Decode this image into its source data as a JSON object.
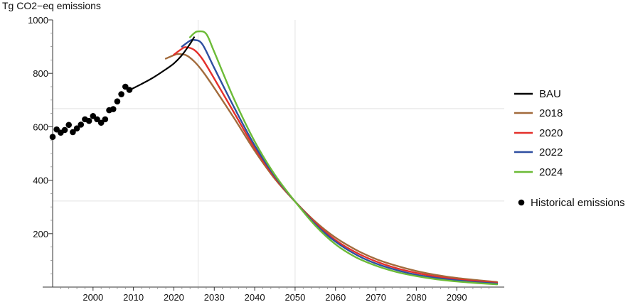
{
  "chart_data": {
    "type": "line",
    "title": "",
    "xlabel": "",
    "ylabel": "Tg CO2−eq emissions",
    "xlim": [
      1990,
      2100
    ],
    "ylim": [
      0,
      1000
    ],
    "x_ticks": [
      "2000",
      "2010",
      "2020",
      "2030",
      "2040",
      "2050",
      "2060",
      "2070",
      "2080",
      "2090"
    ],
    "y_ticks": [
      "200",
      "400",
      "600",
      "800",
      "1000"
    ],
    "reference_lines": {
      "vertical_x": [
        2026,
        2050
      ],
      "horizontal_y": [
        668,
        322
      ]
    },
    "legend_position": "right",
    "series": [
      {
        "name": "BAU",
        "color": "#000000",
        "x": [
          2009,
          2012,
          2015,
          2018,
          2020,
          2022,
          2024,
          2025
        ],
        "y": [
          737,
          760,
          785,
          815,
          837,
          868,
          910,
          935
        ]
      },
      {
        "name": "2018",
        "color": "#a26b3c",
        "x": [
          2018,
          2020,
          2021,
          2023,
          2025,
          2027,
          2030,
          2035,
          2040,
          2045,
          2050,
          2055,
          2060,
          2065,
          2070,
          2075,
          2080,
          2085,
          2090,
          2095,
          2100
        ],
        "y": [
          855,
          868,
          872,
          868,
          845,
          810,
          745,
          630,
          510,
          405,
          320,
          245,
          185,
          140,
          105,
          80,
          60,
          45,
          34,
          26,
          19
        ]
      },
      {
        "name": "2020",
        "color": "#e4302b",
        "x": [
          2020,
          2022,
          2023,
          2025,
          2027,
          2030,
          2035,
          2040,
          2045,
          2050,
          2055,
          2060,
          2065,
          2070,
          2075,
          2080,
          2085,
          2090,
          2095,
          2100
        ],
        "y": [
          870,
          892,
          898,
          888,
          855,
          780,
          650,
          520,
          410,
          320,
          240,
          176,
          130,
          96,
          71,
          53,
          39,
          29,
          22,
          16
        ]
      },
      {
        "name": "2022",
        "color": "#2f4fa1",
        "x": [
          2022,
          2024,
          2025,
          2027,
          2030,
          2035,
          2040,
          2045,
          2050,
          2055,
          2060,
          2065,
          2070,
          2075,
          2080,
          2085,
          2090,
          2095,
          2100
        ],
        "y": [
          900,
          922,
          925,
          910,
          820,
          670,
          530,
          415,
          320,
          235,
          170,
          122,
          88,
          64,
          46,
          34,
          25,
          18,
          13
        ]
      },
      {
        "name": "2024",
        "color": "#6cbb37",
        "x": [
          2024,
          2025,
          2026,
          2028,
          2030,
          2035,
          2040,
          2045,
          2050,
          2055,
          2060,
          2065,
          2070,
          2075,
          2080,
          2085,
          2090,
          2095,
          2100
        ],
        "y": [
          935,
          950,
          957,
          948,
          880,
          700,
          545,
          420,
          320,
          230,
          160,
          112,
          80,
          57,
          41,
          29,
          21,
          15,
          10
        ]
      },
      {
        "name": "Historical emissions",
        "color": "#000000",
        "marker": "dot",
        "x": [
          1990,
          1991,
          1992,
          1993,
          1994,
          1995,
          1996,
          1997,
          1998,
          1999,
          2000,
          2001,
          2002,
          2003,
          2004,
          2005,
          2006,
          2007,
          2008,
          2009
        ],
        "y": [
          562,
          590,
          578,
          588,
          607,
          580,
          594,
          608,
          628,
          622,
          640,
          628,
          615,
          628,
          662,
          666,
          695,
          722,
          750,
          738
        ]
      }
    ]
  }
}
